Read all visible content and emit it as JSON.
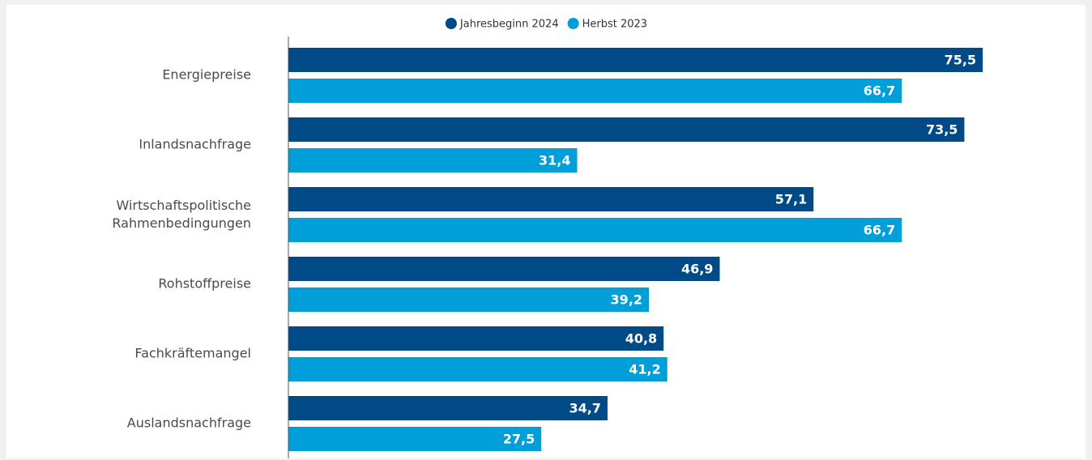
{
  "chart_data": {
    "type": "hbar",
    "categories": [
      "Energiepreise",
      "Inlandsnachfrage",
      "Wirtschaftspolitische Rahmenbedingungen",
      "Rohstoffpreise",
      "Fachkräftemangel",
      "Auslandsnachfrage"
    ],
    "series": [
      {
        "name": "Jahresbeginn 2024",
        "color": "#004b87",
        "values": [
          75.5,
          73.5,
          57.1,
          46.9,
          40.8,
          34.7
        ],
        "value_labels": [
          "75,5",
          "73,5",
          "57,1",
          "46,9",
          "40,8",
          "34,7"
        ]
      },
      {
        "name": "Herbst 2023",
        "color": "#009fda",
        "values": [
          66.7,
          31.4,
          66.7,
          39.2,
          41.2,
          27.5
        ],
        "value_labels": [
          "66,7",
          "31,4",
          "66,7",
          "39,2",
          "41,2",
          "27,5"
        ]
      }
    ],
    "xlim": [
      0,
      85
    ],
    "legend": "top"
  }
}
